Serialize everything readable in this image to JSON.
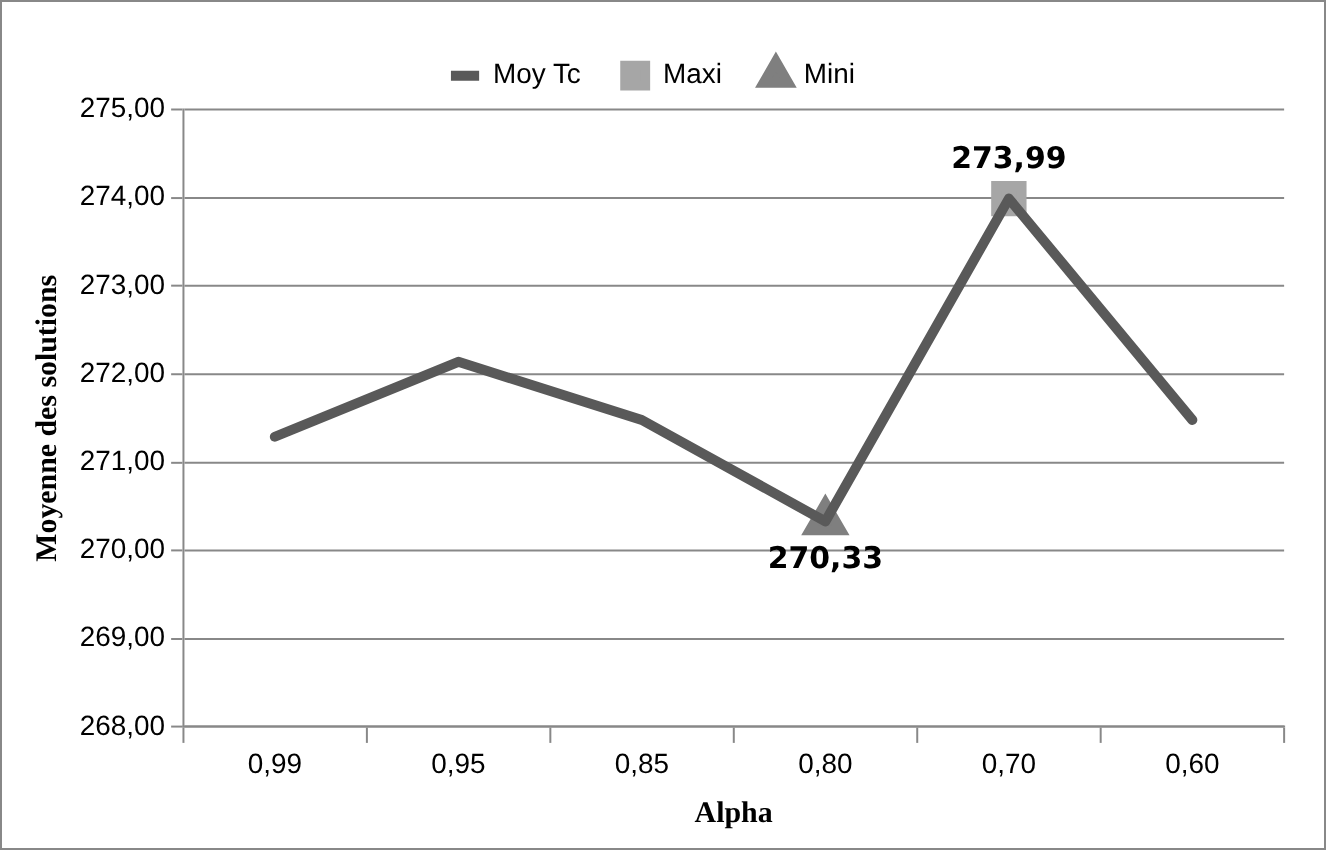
{
  "chart_data": {
    "type": "line",
    "xlabel": "Alpha",
    "ylabel": "Moyenne des solutions",
    "categories": [
      "0,99",
      "0,95",
      "0,85",
      "0,80",
      "0,70",
      "0,60"
    ],
    "series": [
      {
        "name": "Moy Tc",
        "color": "#595959",
        "marker": "none",
        "values": [
          271.29,
          272.14,
          271.48,
          270.33,
          273.99,
          271.48
        ]
      },
      {
        "name": "Maxi",
        "color": "#a6a6a6",
        "marker": "square",
        "values": [
          null,
          null,
          null,
          null,
          273.99,
          null
        ],
        "value_labels": [
          null,
          null,
          null,
          null,
          "273,99",
          null
        ]
      },
      {
        "name": "Mini",
        "color": "#7f7f7f",
        "marker": "triangle",
        "values": [
          null,
          null,
          null,
          270.33,
          null,
          null
        ],
        "value_labels": [
          null,
          null,
          null,
          "270,33",
          null,
          null
        ]
      }
    ],
    "ylim": [
      268,
      275
    ],
    "yticks": [
      {
        "value": 268,
        "label": "268,00"
      },
      {
        "value": 269,
        "label": "269,00"
      },
      {
        "value": 270,
        "label": "270,00"
      },
      {
        "value": 271,
        "label": "271,00"
      },
      {
        "value": 272,
        "label": "272,00"
      },
      {
        "value": 273,
        "label": "273,00"
      },
      {
        "value": 274,
        "label": "274,00"
      },
      {
        "value": 275,
        "label": "275,00"
      }
    ],
    "grid": "y",
    "legend": "top",
    "line_style": "solid"
  }
}
